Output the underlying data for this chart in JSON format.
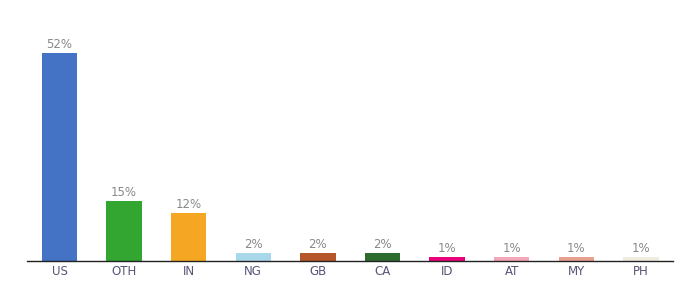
{
  "categories": [
    "US",
    "OTH",
    "IN",
    "NG",
    "GB",
    "CA",
    "ID",
    "AT",
    "MY",
    "PH"
  ],
  "values": [
    52,
    15,
    12,
    2,
    2,
    2,
    1,
    1,
    1,
    1
  ],
  "bar_colors": [
    "#4472c4",
    "#33a632",
    "#f5a623",
    "#a8d8ea",
    "#b5572a",
    "#2d6a2d",
    "#e8007a",
    "#f4a7b9",
    "#e8a090",
    "#f0ede0"
  ],
  "ylim": [
    0,
    60
  ],
  "background_color": "#ffffff",
  "label_fontsize": 8.5,
  "tick_fontsize": 8.5,
  "bar_width": 0.55,
  "label_color": "#888888"
}
